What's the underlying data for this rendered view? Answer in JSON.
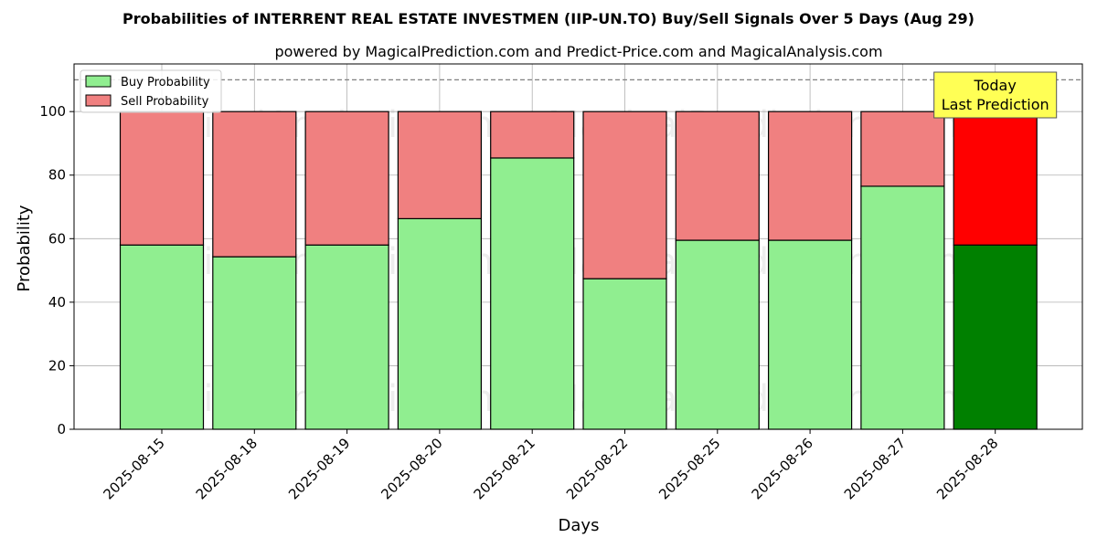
{
  "chart_data": {
    "type": "bar",
    "stacked": true,
    "title": "Probabilities of INTERRENT REAL ESTATE INVESTMEN (IIP-UN.TO) Buy/Sell Signals Over 5 Days (Aug 29)",
    "subtitle": "powered by MagicalPrediction.com and Predict-Price.com and MagicalAnalysis.com",
    "xlabel": "Days",
    "ylabel": "Probability",
    "ylim": [
      0,
      115
    ],
    "yticks": [
      0,
      20,
      40,
      60,
      80,
      100
    ],
    "grid": true,
    "legend_position": "top-left",
    "reference_line": 110,
    "categories": [
      "2025-08-15",
      "2025-08-18",
      "2025-08-19",
      "2025-08-20",
      "2025-08-21",
      "2025-08-22",
      "2025-08-25",
      "2025-08-26",
      "2025-08-27",
      "2025-08-28"
    ],
    "series": [
      {
        "name": "Buy Probability",
        "color": "#90ee90",
        "highlight_color": "#008000",
        "values": [
          58,
          54.3,
          58,
          66.3,
          85.4,
          47.4,
          59.5,
          59.5,
          76.5,
          58
        ]
      },
      {
        "name": "Sell Probability",
        "color": "#f08080",
        "highlight_color": "#ff0000",
        "values": [
          42,
          45.7,
          42,
          33.7,
          14.6,
          52.6,
          40.5,
          40.5,
          23.5,
          42
        ]
      }
    ],
    "highlight_index": 9,
    "annotation": {
      "line1": "Today",
      "line2": "Last Prediction",
      "color": "#ffff55"
    },
    "watermarks": [
      "MagicalAnalysis.com",
      "MagicalPrediction.com"
    ]
  }
}
